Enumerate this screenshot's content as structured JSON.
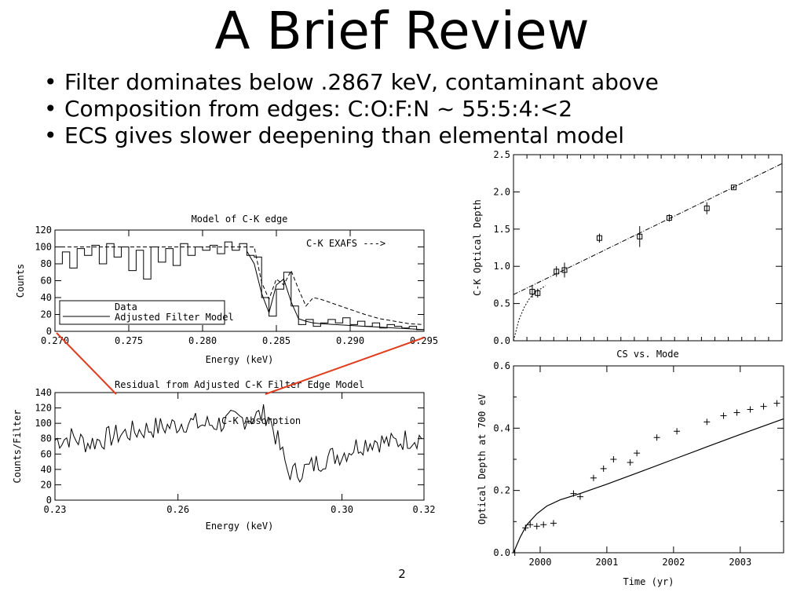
{
  "slide": {
    "title": "A Brief Review",
    "bullets": [
      "Filter dominates below .2867 keV, contaminant above",
      "Composition from edges: C:O:F:N ~ 55:5:4:<2",
      "ECS gives slower deepening than elemental model"
    ],
    "page_number": "2"
  },
  "chart_data": [
    {
      "id": "ck-edge",
      "type": "line",
      "title": "Model of C-K edge",
      "xlabel": "Energy (keV)",
      "ylabel": "Counts",
      "xlim": [
        0.27,
        0.295
      ],
      "ylim": [
        0,
        120
      ],
      "xticks": [
        "0.270",
        "0.275",
        "0.280",
        "0.285",
        "0.290",
        "0.295"
      ],
      "xtick_values": [
        0.27,
        0.275,
        0.28,
        0.285,
        0.29,
        0.295
      ],
      "yticks": [
        "0",
        "20",
        "40",
        "60",
        "80",
        "100",
        "120"
      ],
      "ytick_values": [
        0,
        20,
        40,
        60,
        80,
        100,
        120
      ],
      "annotation": "C-K EXAFS --->",
      "legend": [
        "Data",
        "Adjusted Filter Model"
      ],
      "legend_position": "left",
      "series": [
        {
          "style": "step",
          "x": [
            0.27,
            0.2705,
            0.271,
            0.2715,
            0.272,
            0.2725,
            0.273,
            0.2735,
            0.274,
            0.2745,
            0.275,
            0.2755,
            0.276,
            0.2765,
            0.277,
            0.2775,
            0.278,
            0.2785,
            0.279,
            0.2795,
            0.28,
            0.2805,
            0.281,
            0.2815,
            0.282,
            0.2825,
            0.283,
            0.2835,
            0.284,
            0.2845,
            0.285,
            0.2855,
            0.286,
            0.2865,
            0.287,
            0.2875,
            0.288,
            0.2885,
            0.289,
            0.2895,
            0.29,
            0.2905,
            0.291,
            0.2915,
            0.292,
            0.2925,
            0.293,
            0.2935,
            0.294,
            0.2945
          ],
          "y": [
            80,
            94,
            75,
            98,
            90,
            102,
            80,
            104,
            88,
            100,
            72,
            96,
            62,
            100,
            82,
            98,
            78,
            104,
            90,
            100,
            96,
            102,
            92,
            106,
            96,
            104,
            90,
            88,
            40,
            18,
            50,
            70,
            30,
            8,
            14,
            6,
            10,
            14,
            10,
            16,
            8,
            12,
            6,
            10,
            4,
            8,
            6,
            4,
            6,
            2
          ]
        },
        {
          "style": "dashed",
          "x": [
            0.27,
            0.28,
            0.2835,
            0.284,
            0.2845,
            0.285,
            0.2855,
            0.286,
            0.2865,
            0.287,
            0.2875,
            0.288,
            0.289,
            0.29,
            0.291,
            0.292,
            0.293,
            0.294,
            0.295
          ],
          "y": [
            100,
            100,
            100,
            58,
            38,
            62,
            55,
            72,
            50,
            30,
            40,
            38,
            32,
            26,
            20,
            15,
            12,
            9,
            8
          ]
        },
        {
          "style": "solid",
          "x": [
            0.283,
            0.2835,
            0.284,
            0.2845,
            0.285,
            0.2855,
            0.286,
            0.2865,
            0.287,
            0.2875,
            0.288,
            0.289,
            0.29,
            0.291,
            0.292,
            0.293,
            0.294,
            0.295
          ],
          "y": [
            95,
            80,
            45,
            22,
            55,
            62,
            35,
            15,
            12,
            10,
            9,
            8,
            7,
            6,
            5,
            4,
            3,
            2
          ]
        }
      ]
    },
    {
      "id": "residual",
      "type": "line",
      "title": "Residual from Adjusted C-K Filter Edge Model",
      "xlabel": "Energy (keV)",
      "ylabel": "Counts/Filter",
      "xlim": [
        0.23,
        0.32
      ],
      "ylim": [
        0,
        140
      ],
      "xticks": [
        "0.23",
        "0.26",
        "0.30",
        "0.32"
      ],
      "xtick_values": [
        0.23,
        0.26,
        0.3,
        0.32
      ],
      "yticks": [
        "0",
        "20",
        "40",
        "60",
        "80",
        "100",
        "120",
        "140"
      ],
      "ytick_values": [
        0,
        20,
        40,
        60,
        80,
        100,
        120,
        140
      ],
      "annotation": "C-K Absorption",
      "series": [
        {
          "style": "step",
          "x": [
            0.23,
            0.234,
            0.238,
            0.242,
            0.246,
            0.25,
            0.254,
            0.258,
            0.262,
            0.266,
            0.27,
            0.274,
            0.278,
            0.282,
            0.2867,
            0.288,
            0.292,
            0.296,
            0.3,
            0.304,
            0.308,
            0.312,
            0.316,
            0.32
          ],
          "y": [
            78,
            82,
            74,
            80,
            86,
            90,
            94,
            96,
            102,
            98,
            100,
            104,
            108,
            112,
            40,
            35,
            42,
            55,
            60,
            72,
            78,
            74,
            80,
            82
          ]
        }
      ]
    },
    {
      "id": "ck-optical-depth",
      "type": "scatter",
      "title": "CS vs. Mode",
      "xlabel": "",
      "ylabel": "C-K Optical Depth",
      "xlim": [
        0,
        1
      ],
      "ylim": [
        0.0,
        2.5
      ],
      "yticks": [
        "0.0",
        "0.5",
        "1.0",
        "1.5",
        "2.0",
        "2.5"
      ],
      "ytick_values": [
        0.0,
        0.5,
        1.0,
        1.5,
        2.0,
        2.5
      ],
      "points": {
        "x": [
          0.07,
          0.09,
          0.16,
          0.19,
          0.32,
          0.47,
          0.58,
          0.72,
          0.82
        ],
        "y": [
          0.66,
          0.64,
          0.93,
          0.95,
          1.38,
          1.4,
          1.65,
          1.78,
          2.06
        ],
        "err": [
          0.08,
          0.06,
          0.07,
          0.1,
          0.06,
          0.14,
          0.05,
          0.08,
          0.02
        ]
      },
      "fit": {
        "x": [
          0.0,
          1.0
        ],
        "y": [
          0.62,
          2.38
        ]
      },
      "model": {
        "x": [
          0.0,
          0.02,
          0.04,
          0.06,
          0.08,
          0.12
        ],
        "y": [
          0.0,
          0.28,
          0.45,
          0.57,
          0.65,
          0.74
        ]
      }
    },
    {
      "id": "optical-depth-700",
      "type": "scatter",
      "title": "",
      "xlabel": "Time (yr)",
      "ylabel": "Optical Depth at 700 eV",
      "xlim": [
        1999.6,
        2003.65
      ],
      "ylim": [
        0.0,
        0.6
      ],
      "xticks": [
        "2000",
        "2001",
        "2002",
        "2003"
      ],
      "xtick_values": [
        2000,
        2001,
        2002,
        2003
      ],
      "yticks": [
        "0.0",
        "0.2",
        "0.4",
        "0.6"
      ],
      "ytick_values": [
        0.0,
        0.2,
        0.4,
        0.6
      ],
      "points": {
        "x": [
          1999.62,
          1999.78,
          1999.85,
          1999.95,
          2000.05,
          2000.2,
          2000.5,
          2000.6,
          2000.8,
          2000.95,
          2001.1,
          2001.35,
          2001.45,
          2001.75,
          2002.05,
          2002.5,
          2002.75,
          2002.95,
          2003.15,
          2003.35,
          2003.55
        ],
        "y": [
          0.0,
          0.08,
          0.09,
          0.085,
          0.09,
          0.095,
          0.19,
          0.18,
          0.24,
          0.27,
          0.3,
          0.29,
          0.32,
          0.37,
          0.39,
          0.42,
          0.44,
          0.45,
          0.46,
          0.47,
          0.48
        ]
      },
      "model": {
        "x": [
          1999.6,
          1999.7,
          1999.8,
          1999.95,
          2000.1,
          2000.3,
          2000.6,
          2001.0,
          2001.5,
          2002.0,
          2002.5,
          2003.0,
          2003.65
        ],
        "y": [
          0.0,
          0.05,
          0.09,
          0.125,
          0.15,
          0.17,
          0.19,
          0.22,
          0.26,
          0.3,
          0.34,
          0.38,
          0.43
        ]
      }
    }
  ],
  "colors": {
    "connector": "#e03c1e",
    "ink": "#000000"
  }
}
